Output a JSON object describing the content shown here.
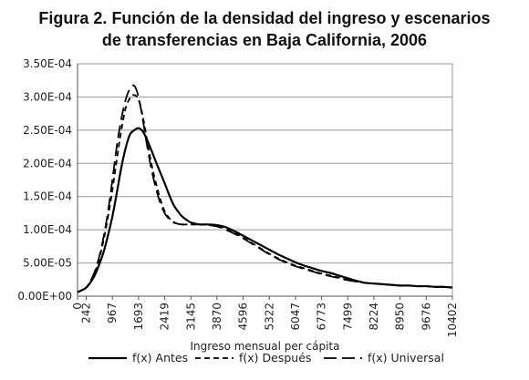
{
  "chart_data": {
    "type": "line",
    "title": "Figura 2. Función de la densidad del ingreso y escenarios",
    "subtitle": "de transferencias en Baja California, 2006",
    "xlabel": "Ingreso mensual per cápita",
    "ylabel": "",
    "x": [
      0,
      121,
      242,
      363,
      484,
      605,
      726,
      847,
      967,
      1088,
      1209,
      1330,
      1451,
      1572,
      1693,
      1814,
      1935,
      2056,
      2177,
      2298,
      2419,
      2540,
      2661,
      2782,
      2903,
      3024,
      3145,
      3387,
      3628,
      3870,
      4112,
      4354,
      4596,
      4838,
      5080,
      5322,
      5564,
      5805,
      6047,
      6289,
      6531,
      6773,
      7015,
      7257,
      7499,
      7741,
      7983,
      8224,
      8466,
      8708,
      8950,
      9192,
      9434,
      9676,
      9918,
      10160,
      10402
    ],
    "x_ticks": [
      "0",
      "242",
      "967",
      "1693",
      "2419",
      "3145",
      "3870",
      "4596",
      "5322",
      "6047",
      "6773",
      "7499",
      "8224",
      "8950",
      "9676",
      "10402"
    ],
    "y_ticks": [
      "0.00E+00",
      "5.00E-05",
      "1.00E-04",
      "1.50E-04",
      "2.00E-04",
      "2.50E-04",
      "3.00E-04",
      "3.50E-04"
    ],
    "ylim": [
      0,
      0.00035
    ],
    "grid": true,
    "legend_position": "bottom",
    "series": [
      {
        "name": "f(x) Antes",
        "dash": "solid",
        "values": [
          6e-06,
          9e-06,
          1.3e-05,
          2.1e-05,
          3.2e-05,
          4.8e-05,
          6.7e-05,
          9.2e-05,
          0.00012,
          0.000155,
          0.000192,
          0.000222,
          0.000243,
          0.00025,
          0.000253,
          0.000248,
          0.000235,
          0.000219,
          0.000202,
          0.000186,
          0.00017,
          0.000153,
          0.000138,
          0.000128,
          0.00012,
          0.000115,
          0.000111,
          0.000108,
          0.000108,
          0.000107,
          0.000104,
          9.8e-05,
          9.1e-05,
          8.4e-05,
          7.7e-05,
          7e-05,
          6.3e-05,
          5.7e-05,
          5.1e-05,
          4.6e-05,
          4.2e-05,
          3.8e-05,
          3.5e-05,
          3.1e-05,
          2.7e-05,
          2.3e-05,
          2e-05,
          1.9e-05,
          1.8e-05,
          1.7e-05,
          1.6e-05,
          1.6e-05,
          1.5e-05,
          1.5e-05,
          1.4e-05,
          1.4e-05,
          1.3e-05
        ]
      },
      {
        "name": "f(x) Después",
        "dash": "short",
        "values": [
          6e-06,
          9e-06,
          1.3e-05,
          2.3e-05,
          3.6e-05,
          5.7e-05,
          8.5e-05,
          0.00012,
          0.00016,
          0.000205,
          0.000248,
          0.000282,
          0.000298,
          0.000303,
          0.000296,
          0.00027,
          0.000233,
          0.000198,
          0.00017,
          0.000146,
          0.000128,
          0.000118,
          0.000112,
          0.000109,
          0.000108,
          0.000108,
          0.000108,
          0.000108,
          0.000108,
          0.000106,
          0.000102,
          9.6e-05,
          8.8e-05,
          8e-05,
          7.2e-05,
          6.4e-05,
          5.7e-05,
          5.1e-05,
          4.6e-05,
          4.2e-05,
          3.8e-05,
          3.4e-05,
          3.1e-05,
          2.8e-05,
          2.5e-05,
          2.2e-05,
          2e-05,
          1.9e-05,
          1.8e-05,
          1.7e-05,
          1.6e-05,
          1.6e-05,
          1.5e-05,
          1.5e-05,
          1.4e-05,
          1.4e-05,
          1.3e-05
        ]
      },
      {
        "name": "f(x) Universal",
        "dash": "long",
        "values": [
          6e-06,
          9e-06,
          1.3e-05,
          2.3e-05,
          3.8e-05,
          6e-05,
          9e-05,
          0.000128,
          0.000175,
          0.000225,
          0.000265,
          0.000295,
          0.000312,
          0.000317,
          0.0003,
          0.000265,
          0.000225,
          0.00019,
          0.000162,
          0.00014,
          0.000125,
          0.000116,
          0.000111,
          0.000109,
          0.000108,
          0.000108,
          0.000108,
          0.000108,
          0.000107,
          0.000105,
          0.0001,
          9.4e-05,
          8.7e-05,
          7.9e-05,
          7.1e-05,
          6.3e-05,
          5.6e-05,
          5e-05,
          4.5e-05,
          4.1e-05,
          3.7e-05,
          3.3e-05,
          3e-05,
          2.7e-05,
          2.4e-05,
          2.2e-05,
          2e-05,
          1.9e-05,
          1.8e-05,
          1.7e-05,
          1.6e-05,
          1.6e-05,
          1.5e-05,
          1.5e-05,
          1.4e-05,
          1.4e-05,
          1.3e-05
        ]
      }
    ]
  }
}
